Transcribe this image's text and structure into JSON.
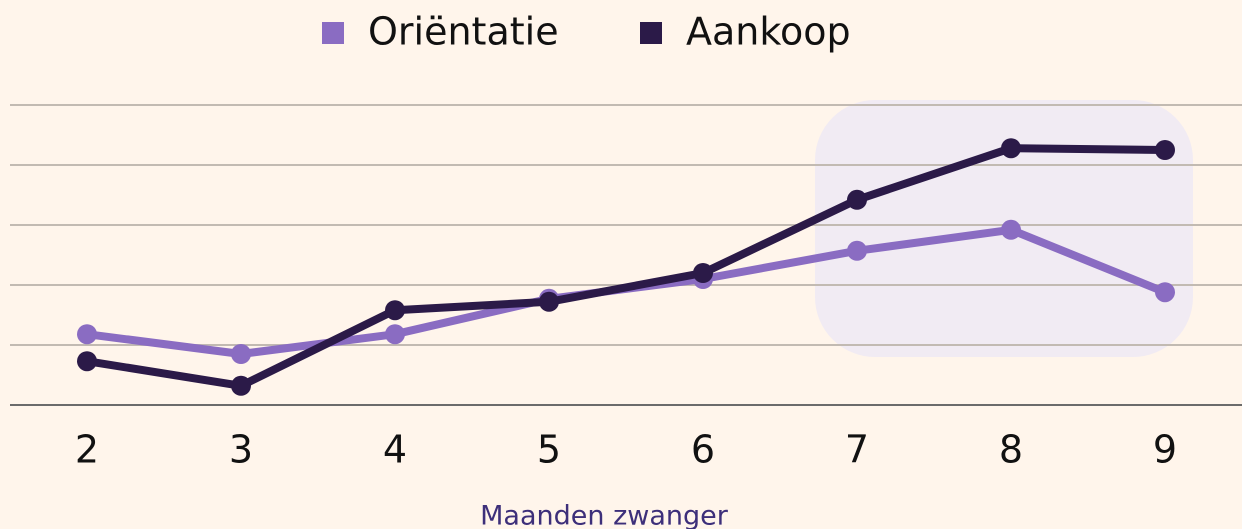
{
  "chart_data": {
    "type": "line",
    "x_label": "Maanden zwanger",
    "categories": [
      "2",
      "3",
      "4",
      "5",
      "6",
      "7",
      "8",
      "9"
    ],
    "series": [
      {
        "name": "Oriëntatie",
        "color": "#8a6cc2",
        "values": [
          1.18,
          0.85,
          1.18,
          1.77,
          2.1,
          2.57,
          2.92,
          1.88
        ]
      },
      {
        "name": "Aankoop",
        "color": "#2b1a48",
        "values": [
          0.73,
          0.32,
          1.58,
          1.72,
          2.2,
          3.42,
          4.28,
          4.25
        ]
      }
    ],
    "ylim": [
      0,
      5
    ],
    "yticks": [
      0,
      1,
      2,
      3,
      4,
      5
    ],
    "grid": true
  }
}
